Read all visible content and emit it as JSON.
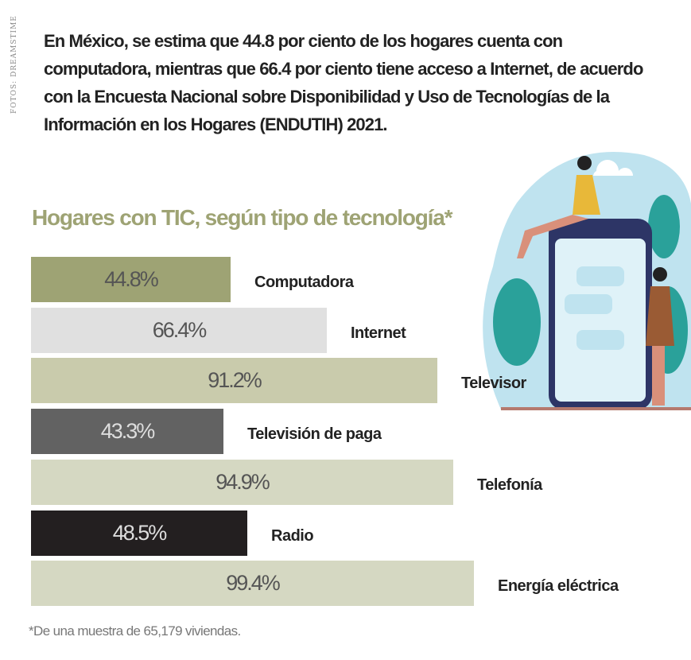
{
  "credit": "FOTOS: DREAMSTIME",
  "intro": "En México, se estima que 44.8 por ciento de los hogares cuenta con computadora, mientras que 66.4 por ciento tiene acceso a Internet, de acuerdo con la Encuesta Nacional sobre Disponibilidad y Uso de Tecnologías de la Información en los Hogares (ENDUTIH) 2021.",
  "chart_data": {
    "type": "bar",
    "orientation": "horizontal",
    "title": "Hogares con TIC, según tipo de tecnología*",
    "categories": [
      "Computadora",
      "Internet",
      "Televisor",
      "Televisión de paga",
      "Telefonía",
      "Radio",
      "Energía eléctrica"
    ],
    "values": [
      44.8,
      66.4,
      91.2,
      43.3,
      94.9,
      48.5,
      99.4
    ],
    "value_labels": [
      "44.8%",
      "66.4%",
      "91.2%",
      "43.3%",
      "94.9%",
      "48.5%",
      "99.4%"
    ],
    "colors": [
      "#9ea374",
      "#e0e0e0",
      "#c9cbac",
      "#626262",
      "#d5d8c2",
      "#231f20",
      "#d5d8c2"
    ],
    "text_colors": [
      "#555",
      "#555",
      "#555",
      "#ddd",
      "#555",
      "#ddd",
      "#555"
    ],
    "unit": "%",
    "xlim": [
      0,
      100
    ],
    "note": "*De una muestra de 65,179 viviendas."
  }
}
